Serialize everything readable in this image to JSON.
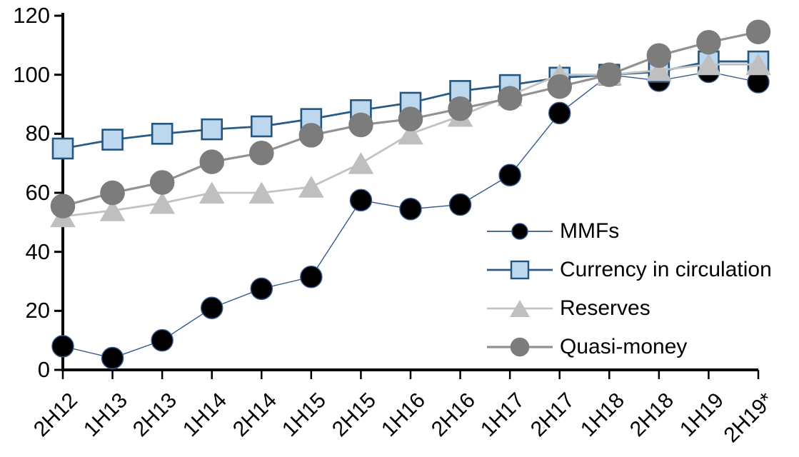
{
  "chart_data": {
    "type": "line",
    "title": "",
    "xlabel": "",
    "ylabel": "",
    "categories": [
      "2H12",
      "1H13",
      "2H13",
      "1H14",
      "2H14",
      "1H15",
      "2H15",
      "1H16",
      "2H16",
      "1H17",
      "2H17",
      "1H18",
      "2H18",
      "1H19",
      "2H19*"
    ],
    "series": [
      {
        "name": "MMFs",
        "marker": "circle",
        "marker_fill": "#000000",
        "marker_stroke": "#35598C",
        "line_color": "#35598C",
        "line_width": 1.4,
        "values": [
          8,
          4,
          10,
          21,
          27.5,
          31.5,
          57.5,
          54.5,
          56,
          66,
          87,
          100,
          98,
          101,
          97.5
        ]
      },
      {
        "name": "Currency in circulation",
        "marker": "square",
        "marker_fill": "#BDD7EE",
        "marker_stroke": "#24557E",
        "line_color": "#2A5B85",
        "line_width": 2.8,
        "values": [
          75,
          78,
          80,
          81.5,
          82.5,
          85,
          88,
          90.5,
          94.5,
          96.5,
          99,
          100,
          101,
          104.5,
          104.5
        ]
      },
      {
        "name": "Reserves",
        "marker": "triangle",
        "marker_fill": "#BFBFBF",
        "marker_stroke": "#BFBFBF",
        "line_color": "#C2C2C2",
        "line_width": 2.8,
        "values": [
          52,
          54,
          56.5,
          60,
          60,
          62,
          70,
          80,
          86,
          93,
          100,
          100,
          101.5,
          103.5,
          103.5
        ]
      },
      {
        "name": "Quasi-money",
        "marker": "circle",
        "marker_fill": "#7C7C7C",
        "marker_stroke": "#7C7C7C",
        "line_color": "#929292",
        "line_width": 3.2,
        "values": [
          55.5,
          60,
          63.5,
          70.5,
          73.5,
          79.5,
          83,
          85,
          88.5,
          92,
          96,
          100,
          106.5,
          111,
          114.5
        ]
      }
    ],
    "ylim": [
      0,
      120
    ],
    "yticks": [
      0,
      20,
      40,
      60,
      80,
      100,
      120
    ],
    "grid": false,
    "legend_position": "inside-right",
    "axis_color": "#000000"
  }
}
